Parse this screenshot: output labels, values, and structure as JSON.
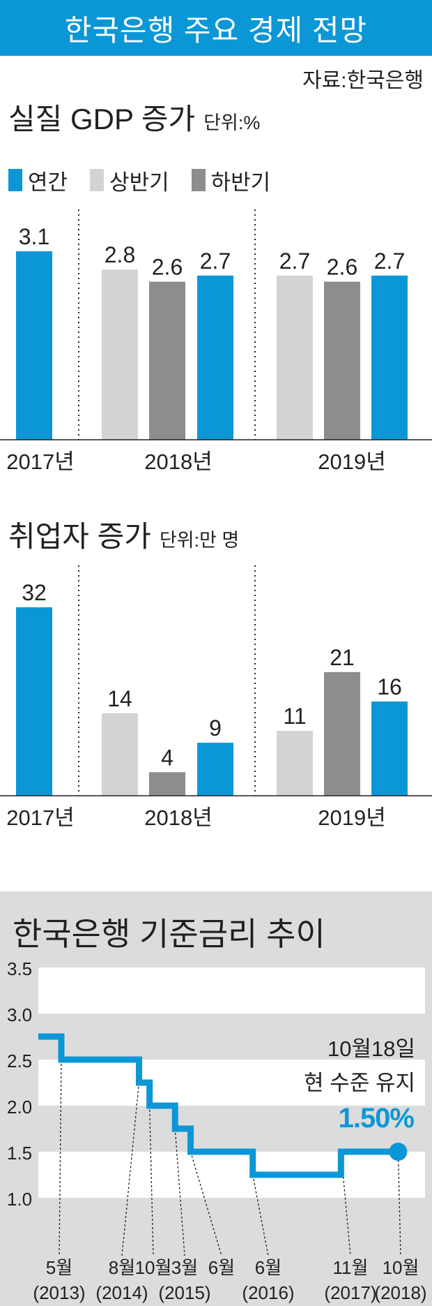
{
  "header": {
    "title": "한국은행 주요 경제 전망",
    "source": "자료:한국은행"
  },
  "legend": {
    "items": [
      {
        "label": "연간",
        "color": "#0b97d6"
      },
      {
        "label": "상반기",
        "color": "#d2d3d4"
      },
      {
        "label": "하반기",
        "color": "#8c8d8f"
      }
    ]
  },
  "gdp": {
    "title": "실질 GDP 증가",
    "unit": "단위:%"
  },
  "jobs": {
    "title": "취업자 증가",
    "unit": "단위:만 명"
  },
  "rate": {
    "title": "한국은행 기준금리 추이",
    "note_line1": "10월18일",
    "note_line2": "현 수준 유지",
    "current": "1.50%"
  },
  "chart_data": [
    {
      "type": "bar",
      "title": "실질 GDP 증가",
      "unit": "단위:%",
      "groups": [
        "2017년",
        "2018년",
        "2019년"
      ],
      "bars": [
        {
          "group": "2017년",
          "series": "연간",
          "value": 3.1,
          "label": "3.1"
        },
        {
          "group": "2018년",
          "series": "상반기",
          "value": 2.8,
          "label": "2.8"
        },
        {
          "group": "2018년",
          "series": "하반기",
          "value": 2.6,
          "label": "2.6"
        },
        {
          "group": "2018년",
          "series": "연간",
          "value": 2.7,
          "label": "2.7"
        },
        {
          "group": "2019년",
          "series": "상반기",
          "value": 2.7,
          "label": "2.7"
        },
        {
          "group": "2019년",
          "series": "하반기",
          "value": 2.6,
          "label": "2.6"
        },
        {
          "group": "2019년",
          "series": "연간",
          "value": 2.7,
          "label": "2.7"
        }
      ],
      "series_colors": {
        "연간": "#0b97d6",
        "상반기": "#d2d3d4",
        "하반기": "#8c8d8f"
      },
      "ylim": [
        0,
        3.1
      ]
    },
    {
      "type": "bar",
      "title": "취업자 증가",
      "unit": "단위:만 명",
      "groups": [
        "2017년",
        "2018년",
        "2019년"
      ],
      "bars": [
        {
          "group": "2017년",
          "series": "연간",
          "value": 32,
          "label": "32"
        },
        {
          "group": "2018년",
          "series": "상반기",
          "value": 14,
          "label": "14"
        },
        {
          "group": "2018년",
          "series": "하반기",
          "value": 4,
          "label": "4"
        },
        {
          "group": "2018년",
          "series": "연간",
          "value": 9,
          "label": "9"
        },
        {
          "group": "2019년",
          "series": "상반기",
          "value": 11,
          "label": "11"
        },
        {
          "group": "2019년",
          "series": "하반기",
          "value": 21,
          "label": "21"
        },
        {
          "group": "2019년",
          "series": "연간",
          "value": 16,
          "label": "16"
        }
      ],
      "series_colors": {
        "연간": "#0b97d6",
        "상반기": "#d2d3d4",
        "하반기": "#8c8d8f"
      },
      "ylim": [
        0,
        32
      ]
    },
    {
      "type": "line",
      "title": "한국은행 기준금리 추이",
      "step": true,
      "color": "#0b97d6",
      "yticks": [
        "3.5",
        "3.0",
        "2.5",
        "2.0",
        "1.5",
        "1.0"
      ],
      "ylim": [
        1.0,
        3.5
      ],
      "xlim": [
        2013.0,
        2018.83
      ],
      "points": [
        {
          "x": 2013.0,
          "y": 2.75
        },
        {
          "x": 2013.37,
          "y": 2.5
        },
        {
          "x": 2014.62,
          "y": 2.25
        },
        {
          "x": 2014.79,
          "y": 2.0
        },
        {
          "x": 2015.2,
          "y": 1.75
        },
        {
          "x": 2015.45,
          "y": 1.5
        },
        {
          "x": 2016.45,
          "y": 1.25
        },
        {
          "x": 2017.87,
          "y": 1.5
        },
        {
          "x": 2018.79,
          "y": 1.5
        }
      ],
      "annotations": [
        {
          "x": 2013.37,
          "label": "5월",
          "year": "(2013)"
        },
        {
          "x": 2014.62,
          "label": "8월",
          "year": "(2014)"
        },
        {
          "x": 2014.79,
          "label": "10월",
          "year": ""
        },
        {
          "x": 2015.2,
          "label": "3월",
          "year": "(2015)"
        },
        {
          "x": 2015.45,
          "label": "6월",
          "year": ""
        },
        {
          "x": 2016.45,
          "label": "6월",
          "year": "(2016)"
        },
        {
          "x": 2017.87,
          "label": "11월",
          "year": "(2017)"
        },
        {
          "x": 2018.79,
          "label": "10월",
          "year": "(2018)"
        }
      ]
    }
  ]
}
